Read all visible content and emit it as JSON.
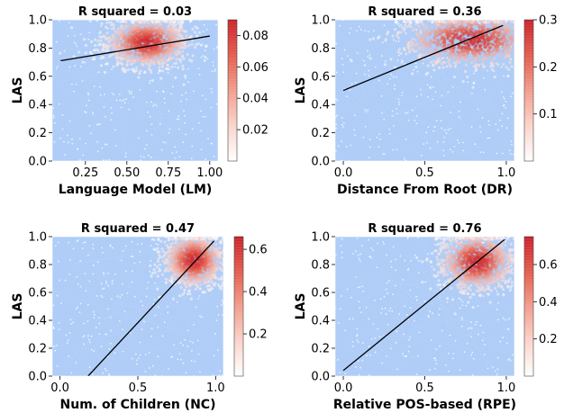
{
  "chart_data": [
    {
      "type": "scatter",
      "title": "R squared = 0.03",
      "xlabel": "Language Model (LM)",
      "ylabel": "LAS",
      "xlim": [
        0.05,
        1.05
      ],
      "ylim": [
        0.0,
        1.0
      ],
      "xticks": [
        0.25,
        0.5,
        0.75,
        1.0
      ],
      "xtick_labels": [
        "0.25",
        "0.50",
        "0.75",
        "1.00"
      ],
      "yticks": [
        0.0,
        0.2,
        0.4,
        0.6,
        0.8,
        1.0
      ],
      "ytick_labels": [
        "0.0",
        "0.2",
        "0.4",
        "0.6",
        "0.8",
        "1.0"
      ],
      "fit_line": {
        "x": [
          0.1,
          1.0
        ],
        "y": [
          0.71,
          0.885
        ]
      },
      "density_center": {
        "x": 0.62,
        "y": 0.84
      },
      "density_spread": {
        "x": 0.13,
        "y": 0.09
      },
      "colorbar": {
        "min": 0.0,
        "max": 0.09,
        "ticks": [
          0.02,
          0.04,
          0.06,
          0.08
        ],
        "tick_labels": [
          "0.02",
          "0.04",
          "0.06",
          "0.08"
        ]
      },
      "background_color": "#afcdf7",
      "cmap": [
        "#ffffff",
        "#fbd3ca",
        "#f29c8c",
        "#e45a4a",
        "#cc1f2a"
      ],
      "grid": false
    },
    {
      "type": "scatter",
      "title": "R squared = 0.36",
      "xlabel": "Distance From Root (DR)",
      "ylabel": "LAS",
      "xlim": [
        -0.05,
        1.05
      ],
      "ylim": [
        0.0,
        1.0
      ],
      "xticks": [
        0.0,
        0.5,
        1.0
      ],
      "xtick_labels": [
        "0.0",
        "0.5",
        "1.0"
      ],
      "yticks": [
        0.0,
        0.2,
        0.4,
        0.6,
        0.8,
        1.0
      ],
      "ytick_labels": [
        "0.0",
        "0.2",
        "0.4",
        "0.6",
        "0.8",
        "1.0"
      ],
      "fit_line": {
        "x": [
          0.0,
          0.98
        ],
        "y": [
          0.5,
          0.96
        ]
      },
      "density_center": {
        "x": 0.78,
        "y": 0.86
      },
      "density_spread": {
        "x": 0.22,
        "y": 0.1
      },
      "colorbar": {
        "min": 0.0,
        "max": 0.3,
        "ticks": [
          0.1,
          0.2,
          0.3
        ],
        "tick_labels": [
          "0.1",
          "0.2",
          "0.3"
        ]
      },
      "background_color": "#afcdf7",
      "cmap": [
        "#ffffff",
        "#fbd3ca",
        "#f29c8c",
        "#e45a4a",
        "#cc1f2a"
      ],
      "grid": false
    },
    {
      "type": "scatter",
      "title": "R squared = 0.47",
      "xlabel": "Num. of Children (NC)",
      "ylabel": "LAS",
      "xlim": [
        -0.05,
        1.05
      ],
      "ylim": [
        0.0,
        1.0
      ],
      "xticks": [
        0.0,
        0.5,
        1.0
      ],
      "xtick_labels": [
        "0.0",
        "0.5",
        "1.0"
      ],
      "yticks": [
        0.0,
        0.2,
        0.4,
        0.6,
        0.8,
        1.0
      ],
      "ytick_labels": [
        "0.0",
        "0.2",
        "0.4",
        "0.6",
        "0.8",
        "1.0"
      ],
      "fit_line": {
        "x": [
          0.18,
          0.99
        ],
        "y": [
          0.0,
          0.97
        ]
      },
      "density_center": {
        "x": 0.86,
        "y": 0.83
      },
      "density_spread": {
        "x": 0.1,
        "y": 0.1
      },
      "colorbar": {
        "min": 0.0,
        "max": 0.66,
        "ticks": [
          0.2,
          0.4,
          0.6
        ],
        "tick_labels": [
          "0.2",
          "0.4",
          "0.6"
        ]
      },
      "background_color": "#afcdf7",
      "cmap": [
        "#ffffff",
        "#fbd3ca",
        "#f29c8c",
        "#e45a4a",
        "#cc1f2a"
      ],
      "grid": false
    },
    {
      "type": "scatter",
      "title": "R squared = 0.76",
      "xlabel": "Relative POS-based (RPE)",
      "ylabel": "LAS",
      "xlim": [
        -0.05,
        1.05
      ],
      "ylim": [
        0.0,
        1.0
      ],
      "xticks": [
        0.0,
        0.5,
        1.0
      ],
      "xtick_labels": [
        "0.0",
        "0.5",
        "1.0"
      ],
      "yticks": [
        0.0,
        0.2,
        0.4,
        0.6,
        0.8,
        1.0
      ],
      "ytick_labels": [
        "0.0",
        "0.2",
        "0.4",
        "0.6",
        "0.8",
        "1.0"
      ],
      "fit_line": {
        "x": [
          0.0,
          0.99
        ],
        "y": [
          0.04,
          0.98
        ]
      },
      "density_center": {
        "x": 0.82,
        "y": 0.82
      },
      "density_spread": {
        "x": 0.12,
        "y": 0.11
      },
      "colorbar": {
        "min": 0.0,
        "max": 0.75,
        "ticks": [
          0.2,
          0.4,
          0.6
        ],
        "tick_labels": [
          "0.2",
          "0.4",
          "0.6"
        ]
      },
      "background_color": "#afcdf7",
      "cmap": [
        "#ffffff",
        "#fbd3ca",
        "#f29c8c",
        "#e45a4a",
        "#cc1f2a"
      ],
      "grid": false
    }
  ]
}
